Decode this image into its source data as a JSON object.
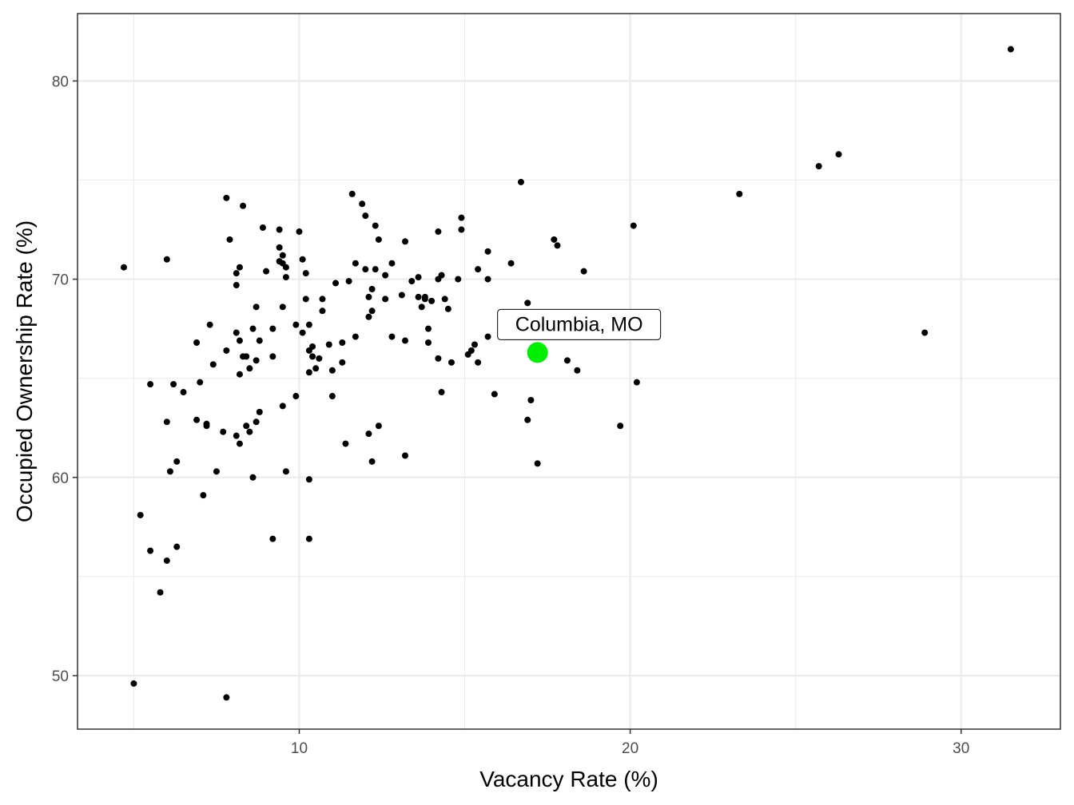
{
  "chart_data": {
    "type": "scatter",
    "xlabel": "Vacancy Rate (%)",
    "ylabel": "Occupied Ownership Rate (%)",
    "xlim": [
      3.3,
      33.0
    ],
    "ylim": [
      47.3,
      83.4
    ],
    "x_ticks": [
      10,
      20,
      30
    ],
    "x_minor": [
      5,
      15,
      25
    ],
    "y_ticks": [
      50,
      60,
      70,
      80
    ],
    "y_minor": [
      55,
      65,
      75
    ],
    "grid": true,
    "colors": {
      "points": "#000000",
      "highlight": "#00ee00",
      "grid": "#ebebeb",
      "panel_border": "#333333"
    },
    "highlight": {
      "label": "Columbia, MO",
      "x": 17.2,
      "y": 66.3
    },
    "points": [
      [
        4.7,
        70.6
      ],
      [
        5.0,
        49.6
      ],
      [
        5.2,
        58.1
      ],
      [
        5.5,
        64.7
      ],
      [
        5.5,
        56.3
      ],
      [
        5.8,
        54.2
      ],
      [
        6.0,
        71.0
      ],
      [
        6.0,
        62.8
      ],
      [
        6.0,
        55.8
      ],
      [
        6.1,
        60.3
      ],
      [
        6.2,
        64.7
      ],
      [
        6.3,
        60.8
      ],
      [
        6.3,
        56.5
      ],
      [
        6.5,
        64.3
      ],
      [
        6.9,
        66.8
      ],
      [
        6.9,
        62.9
      ],
      [
        7.0,
        64.8
      ],
      [
        7.1,
        59.1
      ],
      [
        7.2,
        62.6
      ],
      [
        7.2,
        62.7
      ],
      [
        7.3,
        67.7
      ],
      [
        7.4,
        65.7
      ],
      [
        7.5,
        60.3
      ],
      [
        7.7,
        62.3
      ],
      [
        7.8,
        66.4
      ],
      [
        7.8,
        48.9
      ],
      [
        7.8,
        74.1
      ],
      [
        7.9,
        72.0
      ],
      [
        8.1,
        62.1
      ],
      [
        8.1,
        69.7
      ],
      [
        8.1,
        70.3
      ],
      [
        8.1,
        67.3
      ],
      [
        8.2,
        70.6
      ],
      [
        8.2,
        66.9
      ],
      [
        8.2,
        65.2
      ],
      [
        8.2,
        61.7
      ],
      [
        8.3,
        73.7
      ],
      [
        8.3,
        66.1
      ],
      [
        8.4,
        62.6
      ],
      [
        8.4,
        66.1
      ],
      [
        8.5,
        65.5
      ],
      [
        8.5,
        62.3
      ],
      [
        8.6,
        67.5
      ],
      [
        8.6,
        60.0
      ],
      [
        8.7,
        68.6
      ],
      [
        8.7,
        65.9
      ],
      [
        8.7,
        62.8
      ],
      [
        8.8,
        66.9
      ],
      [
        8.8,
        63.3
      ],
      [
        8.9,
        72.6
      ],
      [
        9.0,
        70.4
      ],
      [
        9.2,
        67.5
      ],
      [
        9.2,
        66.1
      ],
      [
        9.2,
        56.9
      ],
      [
        9.4,
        71.6
      ],
      [
        9.4,
        70.9
      ],
      [
        9.4,
        72.5
      ],
      [
        9.5,
        71.2
      ],
      [
        9.5,
        70.8
      ],
      [
        9.5,
        68.6
      ],
      [
        9.5,
        63.6
      ],
      [
        9.6,
        70.6
      ],
      [
        9.6,
        70.1
      ],
      [
        9.6,
        60.3
      ],
      [
        9.9,
        67.7
      ],
      [
        9.9,
        64.1
      ],
      [
        10.0,
        72.4
      ],
      [
        10.1,
        67.3
      ],
      [
        10.1,
        71.0
      ],
      [
        10.2,
        70.3
      ],
      [
        10.2,
        69.0
      ],
      [
        10.3,
        66.4
      ],
      [
        10.3,
        67.7
      ],
      [
        10.3,
        65.3
      ],
      [
        10.3,
        59.9
      ],
      [
        10.3,
        56.9
      ],
      [
        10.4,
        66.1
      ],
      [
        10.4,
        66.6
      ],
      [
        10.5,
        65.5
      ],
      [
        10.6,
        66.0
      ],
      [
        10.7,
        68.4
      ],
      [
        10.7,
        69.0
      ],
      [
        10.9,
        66.7
      ],
      [
        11.0,
        64.1
      ],
      [
        11.0,
        65.4
      ],
      [
        11.1,
        69.8
      ],
      [
        11.3,
        66.8
      ],
      [
        11.3,
        65.8
      ],
      [
        11.4,
        61.7
      ],
      [
        11.5,
        69.9
      ],
      [
        11.6,
        74.3
      ],
      [
        11.7,
        70.8
      ],
      [
        11.7,
        67.1
      ],
      [
        11.9,
        73.8
      ],
      [
        12.0,
        73.2
      ],
      [
        12.0,
        70.5
      ],
      [
        12.1,
        68.1
      ],
      [
        12.1,
        69.1
      ],
      [
        12.1,
        62.2
      ],
      [
        12.2,
        68.4
      ],
      [
        12.2,
        69.5
      ],
      [
        12.3,
        72.7
      ],
      [
        12.4,
        72.0
      ],
      [
        12.3,
        70.5
      ],
      [
        12.2,
        60.8
      ],
      [
        12.4,
        62.6
      ],
      [
        12.6,
        70.2
      ],
      [
        12.6,
        69.0
      ],
      [
        12.8,
        70.8
      ],
      [
        12.8,
        67.1
      ],
      [
        13.1,
        69.2
      ],
      [
        13.2,
        71.9
      ],
      [
        13.2,
        66.9
      ],
      [
        13.2,
        61.1
      ],
      [
        13.4,
        69.9
      ],
      [
        13.6,
        70.1
      ],
      [
        13.6,
        69.1
      ],
      [
        13.7,
        68.6
      ],
      [
        13.8,
        69.1
      ],
      [
        13.8,
        69.0
      ],
      [
        13.9,
        66.8
      ],
      [
        13.9,
        67.5
      ],
      [
        14.0,
        68.9
      ],
      [
        14.2,
        66.0
      ],
      [
        14.2,
        70.0
      ],
      [
        14.2,
        72.4
      ],
      [
        14.3,
        64.3
      ],
      [
        14.3,
        70.2
      ],
      [
        14.4,
        69.0
      ],
      [
        14.5,
        68.5
      ],
      [
        14.6,
        65.8
      ],
      [
        14.8,
        70.0
      ],
      [
        14.9,
        73.1
      ],
      [
        14.9,
        72.5
      ],
      [
        15.1,
        66.2
      ],
      [
        15.2,
        66.4
      ],
      [
        15.3,
        66.7
      ],
      [
        15.4,
        70.5
      ],
      [
        15.4,
        65.8
      ],
      [
        15.7,
        71.4
      ],
      [
        15.7,
        70.0
      ],
      [
        15.7,
        67.1
      ],
      [
        15.9,
        64.2
      ],
      [
        16.2,
        67.4
      ],
      [
        16.4,
        70.8
      ],
      [
        16.7,
        74.9
      ],
      [
        16.9,
        62.9
      ],
      [
        16.9,
        68.8
      ],
      [
        17.0,
        63.9
      ],
      [
        17.2,
        60.7
      ],
      [
        17.7,
        72.0
      ],
      [
        17.8,
        71.7
      ],
      [
        18.1,
        65.9
      ],
      [
        18.4,
        65.4
      ],
      [
        18.6,
        70.4
      ],
      [
        19.7,
        62.6
      ],
      [
        20.1,
        72.7
      ],
      [
        20.2,
        64.8
      ],
      [
        23.3,
        74.3
      ],
      [
        25.7,
        75.7
      ],
      [
        26.3,
        76.3
      ],
      [
        28.9,
        67.3
      ],
      [
        31.5,
        81.6
      ]
    ]
  }
}
